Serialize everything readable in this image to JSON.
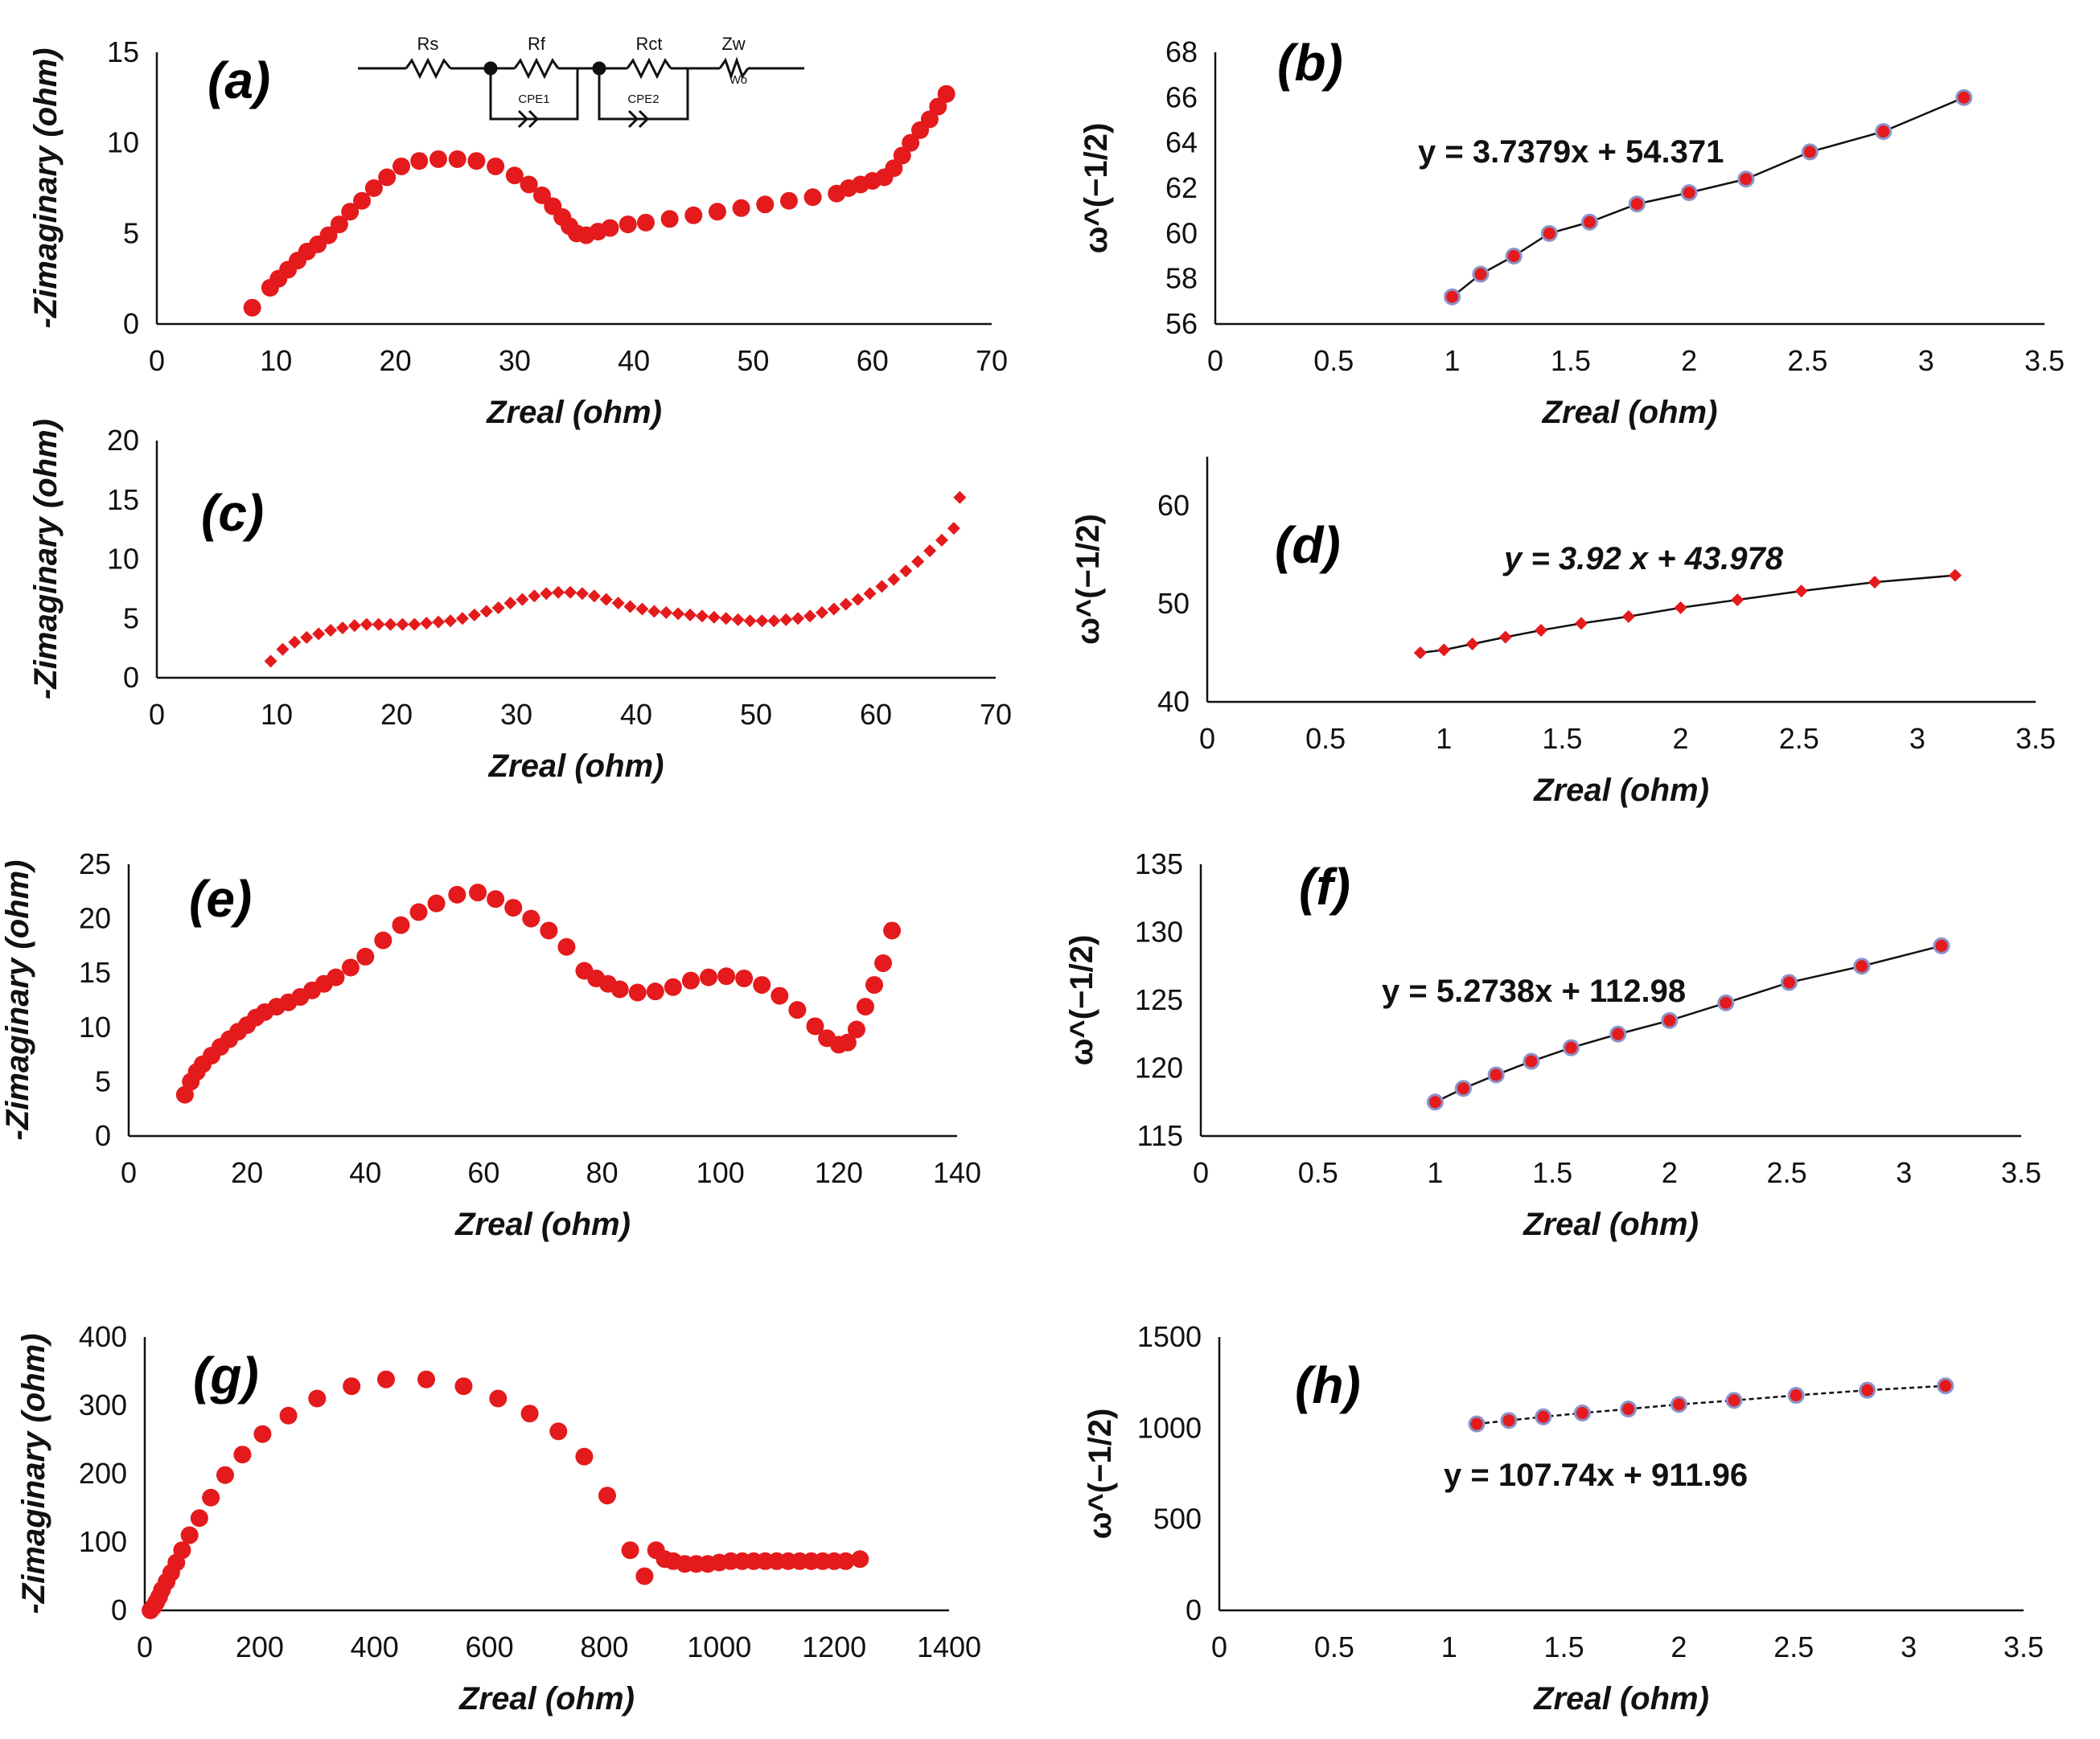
{
  "colors": {
    "marker": "#e41a1c",
    "marker_edge": "#8b93c9",
    "axis": "#111111",
    "fit": "#111111"
  },
  "chart_data": [
    {
      "id": "a",
      "type": "scatter",
      "title": "(a)",
      "xlabel": "Zreal (ohm)",
      "ylabel": "-Zimaginary (ohm)",
      "xlim": [
        0,
        70
      ],
      "ylim": [
        0,
        15
      ],
      "xticks": [
        0,
        10,
        20,
        30,
        40,
        50,
        60,
        70
      ],
      "yticks": [
        0,
        5,
        10,
        15
      ],
      "marker": "dot",
      "x": [
        8,
        9.5,
        10.2,
        11,
        11.8,
        12.6,
        13.5,
        14.4,
        15.3,
        16.2,
        17.2,
        18.2,
        19.3,
        20.5,
        22,
        23.6,
        25.2,
        26.8,
        28.4,
        30,
        31.2,
        32.3,
        33.2,
        34,
        34.6,
        35.2,
        36,
        37,
        38,
        39.5,
        41,
        43,
        45,
        47,
        49,
        51,
        53,
        55,
        57,
        58,
        59,
        60,
        61,
        61.8,
        62.5,
        63.2,
        64,
        64.8,
        65.5,
        66.2
      ],
      "y": [
        0.9,
        2.0,
        2.5,
        3.0,
        3.5,
        4.0,
        4.4,
        4.9,
        5.5,
        6.2,
        6.8,
        7.5,
        8.1,
        8.7,
        9.0,
        9.1,
        9.1,
        9.0,
        8.7,
        8.2,
        7.7,
        7.1,
        6.5,
        5.9,
        5.4,
        5.0,
        4.9,
        5.1,
        5.3,
        5.5,
        5.6,
        5.8,
        6.0,
        6.2,
        6.4,
        6.6,
        6.8,
        7.0,
        7.2,
        7.5,
        7.7,
        7.9,
        8.1,
        8.6,
        9.3,
        10.0,
        10.7,
        11.3,
        12.0,
        12.7
      ]
    },
    {
      "id": "b",
      "type": "line",
      "title": "(b)",
      "xlabel": "Zreal (ohm)",
      "ylabel": "ω^(−1/2)",
      "xlim": [
        0,
        3.5
      ],
      "ylim": [
        56,
        68
      ],
      "xticks": [
        0,
        0.5,
        1,
        1.5,
        2,
        2.5,
        3,
        3.5
      ],
      "yticks": [
        56,
        58,
        60,
        62,
        64,
        66,
        68
      ],
      "marker": "ring",
      "equation": "y = 3.7379x + 54.371",
      "x": [
        1.0,
        1.12,
        1.26,
        1.41,
        1.58,
        1.78,
        2.0,
        2.24,
        2.51,
        2.82,
        3.16
      ],
      "y": [
        57.2,
        58.2,
        59.0,
        60.0,
        60.5,
        61.3,
        61.8,
        62.4,
        63.6,
        64.5,
        66.0
      ]
    },
    {
      "id": "c",
      "type": "scatter",
      "title": "(c)",
      "xlabel": "Zreal (ohm)",
      "ylabel": "-Zimaginary (ohm)",
      "xlim": [
        0,
        70
      ],
      "ylim": [
        0,
        20
      ],
      "xticks": [
        0,
        10,
        20,
        30,
        40,
        50,
        60,
        70
      ],
      "yticks": [
        0,
        5,
        10,
        15,
        20
      ],
      "marker": "diamond",
      "x": [
        9.5,
        10.5,
        11.5,
        12.5,
        13.5,
        14.5,
        15.5,
        16.5,
        17.5,
        18.5,
        19.5,
        20.5,
        21.5,
        22.5,
        23.5,
        24.5,
        25.5,
        26.5,
        27.5,
        28.5,
        29.5,
        30.5,
        31.5,
        32.5,
        33.5,
        34.5,
        35.5,
        36.5,
        37.5,
        38.5,
        39.5,
        40.5,
        41.5,
        42.5,
        43.5,
        44.5,
        45.5,
        46.5,
        47.5,
        48.5,
        49.5,
        50.5,
        51.5,
        52.5,
        53.5,
        54.5,
        55.5,
        56.5,
        57.5,
        58.5,
        59.5,
        60.5,
        61.5,
        62.5,
        63.5,
        64.5,
        65.5,
        66.5,
        67
      ],
      "y": [
        1.4,
        2.4,
        3.0,
        3.4,
        3.7,
        4.0,
        4.2,
        4.4,
        4.5,
        4.5,
        4.5,
        4.5,
        4.5,
        4.6,
        4.7,
        4.8,
        5.0,
        5.3,
        5.6,
        5.9,
        6.3,
        6.6,
        6.9,
        7.1,
        7.2,
        7.2,
        7.1,
        6.9,
        6.6,
        6.3,
        6.0,
        5.8,
        5.6,
        5.5,
        5.4,
        5.3,
        5.2,
        5.1,
        5.0,
        4.9,
        4.8,
        4.8,
        4.8,
        4.9,
        5.0,
        5.2,
        5.5,
        5.8,
        6.2,
        6.6,
        7.1,
        7.7,
        8.3,
        9.0,
        9.8,
        10.7,
        11.6,
        12.6,
        15.2
      ]
    },
    {
      "id": "d",
      "type": "line",
      "title": "(d)",
      "xlabel": "Zreal (ohm)",
      "ylabel": "ω^(−1/2)",
      "xlim": [
        0,
        3.5
      ],
      "ylim": [
        40,
        65
      ],
      "xticks": [
        0,
        0.5,
        1,
        1.5,
        2,
        2.5,
        3,
        3.5
      ],
      "yticks": [
        40,
        50,
        60
      ],
      "marker": "diamond",
      "equation": "y = 3.92 x + 43.978",
      "x": [
        0.9,
        1.0,
        1.12,
        1.26,
        1.41,
        1.58,
        1.78,
        2.0,
        2.24,
        2.51,
        2.82,
        3.16
      ],
      "y": [
        45.0,
        45.3,
        45.9,
        46.6,
        47.3,
        48.0,
        48.7,
        49.6,
        50.4,
        51.3,
        52.2,
        52.9
      ]
    },
    {
      "id": "e",
      "type": "scatter",
      "title": "(e)",
      "xlabel": "Zreal (ohm)",
      "ylabel": "-Zimaginary (ohm)",
      "xlim": [
        0,
        140
      ],
      "ylim": [
        0,
        25
      ],
      "xticks": [
        0,
        20,
        40,
        60,
        80,
        100,
        120,
        140
      ],
      "yticks": [
        0,
        5,
        10,
        15,
        20,
        25
      ],
      "marker": "dot",
      "x": [
        9.5,
        10.5,
        11.5,
        12.5,
        14,
        15.5,
        17,
        18.5,
        20,
        21.5,
        23,
        25,
        27,
        29,
        31,
        33,
        35,
        37.5,
        40,
        43,
        46,
        49,
        52,
        55.5,
        59,
        62,
        65,
        68,
        71,
        74,
        77,
        79,
        81,
        83,
        86,
        89,
        92,
        95,
        98,
        101,
        104,
        107,
        110,
        113,
        116,
        118,
        120,
        121.5,
        123,
        124.5,
        126,
        127.5,
        129
      ],
      "y": [
        3.8,
        5.0,
        5.9,
        6.6,
        7.4,
        8.2,
        8.9,
        9.6,
        10.2,
        10.9,
        11.4,
        11.9,
        12.3,
        12.8,
        13.4,
        14.0,
        14.6,
        15.5,
        16.5,
        18.0,
        19.4,
        20.6,
        21.4,
        22.2,
        22.4,
        21.8,
        21.0,
        20.0,
        18.9,
        17.4,
        15.2,
        14.5,
        14.0,
        13.5,
        13.2,
        13.3,
        13.7,
        14.3,
        14.6,
        14.7,
        14.5,
        13.9,
        12.9,
        11.6,
        10.1,
        9.0,
        8.4,
        8.6,
        9.8,
        11.9,
        13.9,
        15.9,
        18.9
      ]
    },
    {
      "id": "f",
      "type": "line",
      "title": "(f)",
      "xlabel": "Zreal (ohm)",
      "ylabel": "ω^(−1/2)",
      "xlim": [
        0,
        3.5
      ],
      "ylim": [
        115,
        135
      ],
      "xticks": [
        0,
        0.5,
        1,
        1.5,
        2,
        2.5,
        3,
        3.5
      ],
      "yticks": [
        115,
        120,
        125,
        130,
        135
      ],
      "marker": "ring",
      "equation": "y = 5.2738x + 112.98",
      "x": [
        1.0,
        1.12,
        1.26,
        1.41,
        1.58,
        1.78,
        2.0,
        2.24,
        2.51,
        2.82,
        3.16
      ],
      "y": [
        117.5,
        118.5,
        119.5,
        120.5,
        121.5,
        122.5,
        123.5,
        124.8,
        126.3,
        127.5,
        129.0
      ]
    },
    {
      "id": "g",
      "type": "scatter",
      "title": "(g)",
      "xlabel": "Zreal (ohm)",
      "ylabel": "-Zimaginary (ohm)",
      "xlim": [
        0,
        1400
      ],
      "ylim": [
        0,
        400
      ],
      "xticks": [
        0,
        200,
        400,
        600,
        800,
        1000,
        1200,
        1400
      ],
      "yticks": [
        0,
        100,
        200,
        300,
        400
      ],
      "marker": "dot",
      "x": [
        10,
        15,
        20,
        25,
        30,
        38,
        46,
        55,
        65,
        78,
        95,
        115,
        140,
        170,
        205,
        250,
        300,
        360,
        420,
        490,
        555,
        615,
        670,
        720,
        765,
        805,
        845,
        870,
        890,
        905,
        920,
        940,
        960,
        980,
        1000,
        1020,
        1040,
        1060,
        1080,
        1100,
        1120,
        1140,
        1160,
        1180,
        1200,
        1220,
        1245
      ],
      "y": [
        0,
        5,
        12,
        20,
        30,
        42,
        55,
        70,
        88,
        110,
        135,
        165,
        198,
        228,
        258,
        285,
        310,
        328,
        338,
        338,
        328,
        310,
        288,
        262,
        225,
        168,
        88,
        50,
        88,
        75,
        72,
        68,
        68,
        68,
        70,
        72,
        72,
        72,
        72,
        72,
        72,
        72,
        72,
        72,
        72,
        72,
        75
      ]
    },
    {
      "id": "h",
      "type": "line",
      "title": "(h)",
      "xlabel": "Zreal (ohm)",
      "ylabel": "ω^(−1/2)",
      "xlim": [
        0,
        3.5
      ],
      "ylim": [
        0,
        1500
      ],
      "xticks": [
        0,
        0.5,
        1,
        1.5,
        2,
        2.5,
        3,
        3.5
      ],
      "yticks": [
        0,
        500,
        1000,
        1500
      ],
      "marker": "ring",
      "equation": "y = 107.74x + 911.96",
      "x": [
        1.12,
        1.26,
        1.41,
        1.58,
        1.78,
        2.0,
        2.24,
        2.51,
        2.82,
        3.16
      ],
      "y": [
        1023,
        1042,
        1062,
        1083,
        1105,
        1130,
        1152,
        1180,
        1208,
        1232
      ]
    }
  ],
  "circuit": {
    "labels": {
      "rs": "Rs",
      "rf": "Rf",
      "rct": "Rct",
      "zw": "Zw",
      "cpe1": "CPE1",
      "cpe2": "CPE2",
      "wo": "Wo"
    }
  }
}
